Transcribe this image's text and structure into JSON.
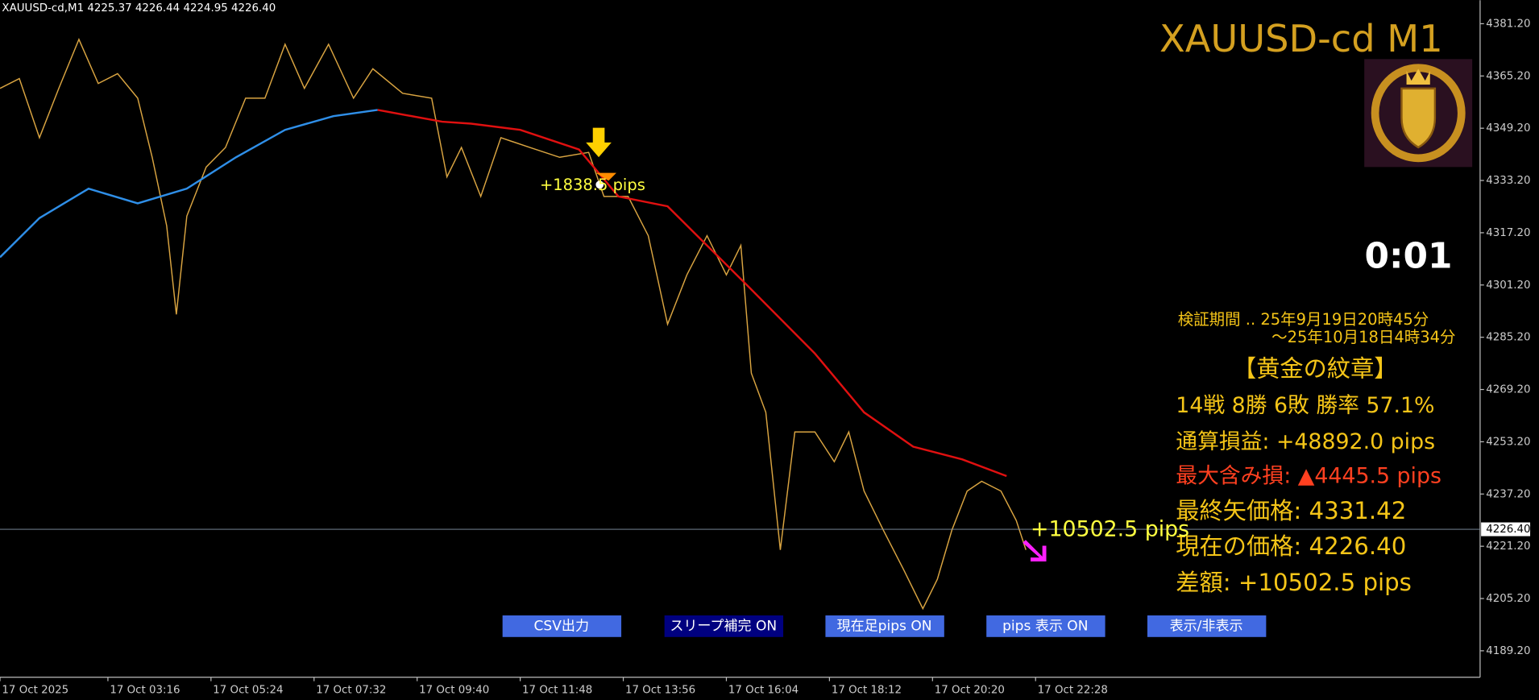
{
  "chart_data": {
    "type": "line",
    "header": "XAUUSD-cd,M1  4225.37 4226.44 4224.95 4226.40",
    "title": "XAUUSD-cd M1",
    "timer": "0:01",
    "xlim": [
      0,
      1838
    ],
    "xticks": [
      {
        "value": 0,
        "label": "17 Oct 2025"
      },
      {
        "value": 134,
        "label": "17 Oct 03:16"
      },
      {
        "value": 262,
        "label": "17 Oct 05:24"
      },
      {
        "value": 390,
        "label": "17 Oct 07:32"
      },
      {
        "value": 518,
        "label": "17 Oct 09:40"
      },
      {
        "value": 646,
        "label": "17 Oct 11:48"
      },
      {
        "value": 774,
        "label": "17 Oct 13:56"
      },
      {
        "value": 902,
        "label": "17 Oct 16:04"
      },
      {
        "value": 1030,
        "label": "17 Oct 18:12"
      },
      {
        "value": 1158,
        "label": "17 Oct 20:20"
      },
      {
        "value": 1286,
        "label": "17 Oct 22:28"
      }
    ],
    "ylim": [
      4181.1,
      4388.4
    ],
    "yticks": [
      {
        "value": 4381.2,
        "label": "4381.20"
      },
      {
        "value": 4365.2,
        "label": "4365.20"
      },
      {
        "value": 4349.2,
        "label": "4349.20"
      },
      {
        "value": 4333.2,
        "label": "4333.20"
      },
      {
        "value": 4317.2,
        "label": "4317.20"
      },
      {
        "value": 4301.2,
        "label": "4301.20"
      },
      {
        "value": 4285.2,
        "label": "4285.20"
      },
      {
        "value": 4269.2,
        "label": "4269.20"
      },
      {
        "value": 4253.2,
        "label": "4253.20"
      },
      {
        "value": 4237.2,
        "label": "4237.20"
      },
      {
        "value": 4221.2,
        "label": "4221.20"
      },
      {
        "value": 4205.2,
        "label": "4205.20"
      },
      {
        "value": 4189.2,
        "label": "4189.20"
      }
    ],
    "current_price": {
      "value": 4226.4,
      "label": "4226.40"
    },
    "series": [
      {
        "color": "#d9a441",
        "x": [
          0,
          24,
          49,
          73,
          98,
          122,
          146,
          171,
          189,
          207,
          219,
          232,
          256,
          280,
          305,
          329,
          354,
          378,
          408,
          439,
          463,
          500,
          536,
          555,
          573,
          597,
          622,
          658,
          695,
          731,
          750,
          780,
          805,
          829,
          853,
          878,
          902,
          920,
          933,
          951,
          969,
          987,
          1012,
          1036,
          1054,
          1073,
          1097,
          1122,
          1146,
          1164,
          1182,
          1201,
          1219,
          1243,
          1262,
          1274
        ],
        "values": [
          4361.4,
          4364.4,
          4346.3,
          4361.4,
          4376.4,
          4362.9,
          4365.9,
          4358.4,
          4340.3,
          4319.3,
          4292.2,
          4322.3,
          4337.3,
          4343.3,
          4358.4,
          4358.4,
          4374.9,
          4361.4,
          4374.9,
          4358.4,
          4367.4,
          4359.9,
          4358.4,
          4334.3,
          4343.3,
          4328.3,
          4346.3,
          4343.3,
          4340.3,
          4341.8,
          4328.3,
          4328.3,
          4316.3,
          4289.2,
          4304.3,
          4316.3,
          4304.3,
          4313.3,
          4274.2,
          4262.2,
          4220.1,
          4256.2,
          4256.2,
          4247.1,
          4256.2,
          4238.1,
          4226.1,
          4214.1,
          4202.1,
          4211.1,
          4226.1,
          4238.1,
          4241.1,
          4238.1,
          4229.1,
          4220.1
        ]
      },
      {
        "color": "#2f8fe8",
        "x": [
          0,
          49,
          110,
          171,
          232,
          293,
          354,
          414,
          469
        ],
        "values": [
          4309.7,
          4321.7,
          4330.7,
          4326.2,
          4330.7,
          4340.3,
          4348.7,
          4352.9,
          4354.8
        ]
      },
      {
        "color": "#e01010",
        "x": [
          469,
          549,
          585,
          646,
          719,
          768,
          829,
          927,
          1012,
          1073,
          1134,
          1195,
          1250
        ],
        "values": [
          4354.8,
          4351.2,
          4350.6,
          4348.7,
          4342.7,
          4328.3,
          4325.3,
          4301.3,
          4280.2,
          4262.2,
          4251.7,
          4247.8,
          4242.7
        ]
      }
    ],
    "annotations": [
      "+1838.5 pips",
      "+10502.5 pips"
    ]
  },
  "panel": {
    "period_1": "検証期間 .. 25年9月19日20時45分",
    "period_2": "～25年10月18日4時34分",
    "name": "【黄金の紋章】",
    "record": "14戦 8勝 6敗  勝率 57.1%",
    "total": "通算損益:  +48892.0 pips",
    "drawdown": "最大含み損:  ▲4445.5 pips",
    "last_arrow": "最終矢価格: 4331.42",
    "current": "現在の価格: 4226.40",
    "diff": "差額:     +10502.5 pips"
  },
  "buttons": [
    "CSV出力",
    "スリープ補完 ON",
    "現在足pips ON",
    "pips 表示  ON",
    "表示/非表示"
  ]
}
